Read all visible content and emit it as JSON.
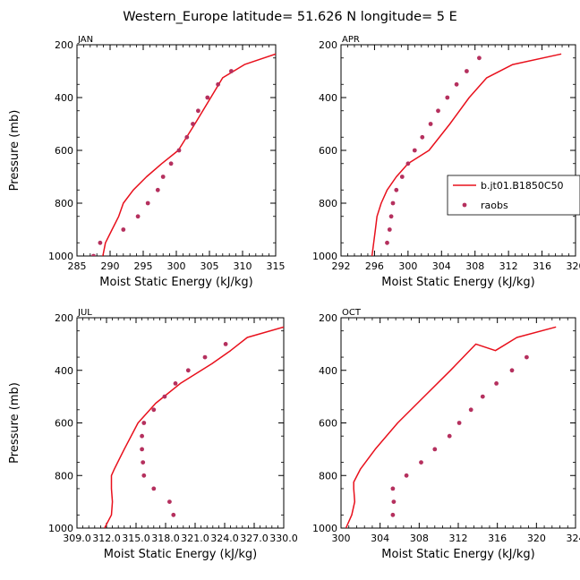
{
  "title": "Western_Europe  latitude= 51.626 N longitude= 5 E",
  "colors": {
    "model": "#e8101c",
    "obs": "#b5305e",
    "axis": "#000000"
  },
  "legend": {
    "placement": "right of APR panel",
    "items": [
      {
        "label": "b.jt01.B1850C50",
        "kind": "line"
      },
      {
        "label": "raobs",
        "kind": "marker"
      }
    ]
  },
  "chart_data": [
    {
      "type": "line",
      "panel": "JAN",
      "xlabel": "Moist Static Energy (kJ/kg)",
      "ylabel": "Pressure (mb)",
      "xlim": [
        285,
        315
      ],
      "ylim": [
        1000,
        200
      ],
      "xticks": [
        "285",
        "290",
        "295",
        "300",
        "305",
        "310",
        "315"
      ],
      "yticks": [
        "200",
        "400",
        "600",
        "800",
        "1000"
      ],
      "series": [
        {
          "kind": "line",
          "x": [
            288.9,
            289.3,
            290.3,
            291.3,
            292.0,
            293.5,
            295.5,
            297.8,
            300.3,
            302.8,
            305.2,
            307.0,
            310.3,
            315.0
          ],
          "y": [
            1000,
            950,
            900,
            850,
            800,
            750,
            700,
            650,
            600,
            500,
            400,
            325,
            275,
            235
          ]
        },
        {
          "kind": "marker",
          "x": [
            287.5,
            288.5,
            292.0,
            294.2,
            295.7,
            297.2,
            298.0,
            299.2,
            300.4,
            301.6,
            302.5,
            303.3,
            304.7,
            306.3,
            308.3
          ],
          "y": [
            1000,
            950,
            900,
            850,
            800,
            750,
            700,
            650,
            600,
            550,
            500,
            450,
            400,
            350,
            300
          ]
        }
      ]
    },
    {
      "type": "line",
      "panel": "APR",
      "xlabel": "Moist Static Energy (kJ/kg)",
      "ylabel": "",
      "xlim": [
        292,
        320
      ],
      "ylim": [
        1000,
        200
      ],
      "xticks": [
        "292",
        "296",
        "300",
        "304",
        "308",
        "312",
        "316",
        "320"
      ],
      "yticks": [
        "200",
        "400",
        "600",
        "800",
        "1000"
      ],
      "series": [
        {
          "kind": "line",
          "x": [
            295.7,
            295.9,
            296.1,
            296.3,
            296.8,
            297.5,
            298.6,
            300.0,
            302.5,
            305.0,
            307.3,
            309.4,
            312.5,
            318.3
          ],
          "y": [
            1000,
            950,
            900,
            850,
            800,
            750,
            700,
            650,
            600,
            500,
            400,
            325,
            275,
            235
          ]
        },
        {
          "kind": "marker",
          "x": [
            297.5,
            297.8,
            298.0,
            298.2,
            298.6,
            299.3,
            300.0,
            300.8,
            301.7,
            302.7,
            303.6,
            304.7,
            305.8,
            307.0,
            308.5
          ],
          "y": [
            950,
            900,
            850,
            800,
            750,
            700,
            650,
            600,
            550,
            500,
            450,
            400,
            350,
            300,
            250
          ]
        }
      ]
    },
    {
      "type": "line",
      "panel": "JUL",
      "xlabel": "Moist Static Energy (kJ/kg)",
      "ylabel": "Pressure (mb)",
      "xlim": [
        309.0,
        330.0
      ],
      "ylim": [
        1000,
        200
      ],
      "xticks": [
        "309.0",
        "312.0",
        "315.0",
        "318.0",
        "321.0",
        "324.0",
        "327.0",
        "330.0"
      ],
      "yticks": [
        "200",
        "400",
        "600",
        "800",
        "1000"
      ],
      "series": [
        {
          "kind": "line",
          "x": [
            311.8,
            312.5,
            312.6,
            312.5,
            312.5,
            312.8,
            313.8,
            315.2,
            317.0,
            319.5,
            322.7,
            324.6,
            326.3,
            330.0
          ],
          "y": [
            1000,
            950,
            900,
            850,
            800,
            775,
            700,
            600,
            525,
            450,
            375,
            325,
            275,
            235
          ]
        },
        {
          "kind": "marker",
          "x": [
            318.8,
            318.4,
            316.8,
            315.8,
            315.7,
            315.6,
            315.6,
            315.8,
            316.8,
            317.9,
            319.0,
            320.3,
            322.0,
            324.1
          ],
          "y": [
            950,
            900,
            850,
            800,
            750,
            700,
            650,
            600,
            550,
            500,
            450,
            400,
            350,
            300
          ]
        }
      ]
    },
    {
      "type": "line",
      "panel": "OCT",
      "xlabel": "Moist Static Energy (kJ/kg)",
      "ylabel": "",
      "xlim": [
        300,
        324
      ],
      "ylim": [
        1000,
        200
      ],
      "xticks": [
        "300",
        "304",
        "308",
        "312",
        "316",
        "320",
        "324"
      ],
      "yticks": [
        "200",
        "400",
        "600",
        "800",
        "1000"
      ],
      "series": [
        {
          "kind": "line",
          "x": [
            300.5,
            301.1,
            301.4,
            301.3,
            301.3,
            302.0,
            303.5,
            305.8,
            308.5,
            311.2,
            313.8,
            315.8,
            318.0,
            322.0
          ],
          "y": [
            1000,
            950,
            900,
            850,
            825,
            775,
            700,
            600,
            500,
            400,
            300,
            325,
            275,
            235
          ]
        },
        {
          "kind": "marker",
          "x": [
            305.3,
            305.4,
            305.3,
            306.7,
            308.2,
            309.6,
            311.1,
            312.1,
            313.3,
            314.5,
            315.9,
            317.5,
            319.0
          ],
          "y": [
            950,
            900,
            850,
            800,
            750,
            700,
            650,
            600,
            550,
            500,
            450,
            400,
            350
          ]
        }
      ]
    }
  ]
}
